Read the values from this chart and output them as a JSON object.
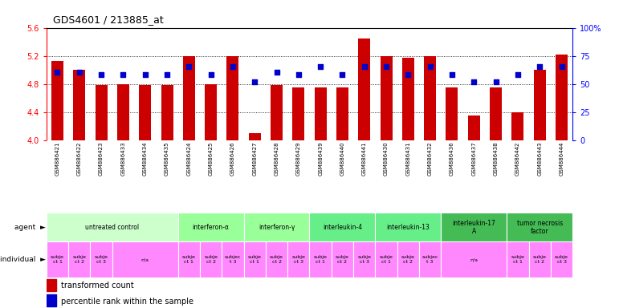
{
  "title": "GDS4601 / 213885_at",
  "gsm_labels": [
    "GSM886421",
    "GSM886422",
    "GSM886423",
    "GSM886433",
    "GSM886434",
    "GSM886435",
    "GSM886424",
    "GSM886425",
    "GSM886426",
    "GSM886427",
    "GSM886428",
    "GSM886429",
    "GSM886439",
    "GSM886440",
    "GSM886441",
    "GSM886430",
    "GSM886431",
    "GSM886432",
    "GSM886436",
    "GSM886437",
    "GSM886438",
    "GSM886442",
    "GSM886443",
    "GSM886444"
  ],
  "bar_values": [
    5.13,
    5.0,
    4.78,
    4.8,
    4.78,
    4.78,
    5.19,
    4.8,
    5.19,
    4.1,
    4.78,
    4.75,
    4.75,
    4.75,
    5.45,
    5.19,
    5.17,
    5.19,
    4.75,
    4.35,
    4.75,
    4.4,
    5.0,
    5.22
  ],
  "dot_values": [
    4.97,
    4.97,
    4.93,
    4.93,
    4.93,
    4.93,
    5.05,
    4.93,
    5.05,
    4.83,
    4.97,
    4.93,
    5.05,
    4.93,
    5.05,
    5.05,
    4.93,
    5.05,
    4.93,
    4.83,
    4.83,
    4.93,
    5.05,
    5.05
  ],
  "ylim_left": [
    4.0,
    5.6
  ],
  "ylim_right": [
    0,
    100
  ],
  "yticks_left": [
    4.0,
    4.4,
    4.8,
    5.2,
    5.6
  ],
  "yticks_right": [
    0,
    25,
    50,
    75,
    100
  ],
  "ytick_labels_right": [
    "0",
    "25",
    "50",
    "75",
    "100%"
  ],
  "bar_color": "#cc0000",
  "dot_color": "#0000cc",
  "agent_groups": [
    {
      "label": "untreated control",
      "start": 0,
      "end": 6,
      "color": "#ccffcc"
    },
    {
      "label": "interferon-α",
      "start": 6,
      "end": 9,
      "color": "#99ff99"
    },
    {
      "label": "interferon-γ",
      "start": 9,
      "end": 12,
      "color": "#99ff99"
    },
    {
      "label": "interleukin-4",
      "start": 12,
      "end": 15,
      "color": "#66ee88"
    },
    {
      "label": "interleukin-13",
      "start": 15,
      "end": 18,
      "color": "#66ee88"
    },
    {
      "label": "interleukin-17\nA",
      "start": 18,
      "end": 21,
      "color": "#44bb55"
    },
    {
      "label": "tumor necrosis\nfactor",
      "start": 21,
      "end": 24,
      "color": "#44bb55"
    }
  ],
  "individual_groups": [
    {
      "label": "subje\nct 1",
      "start": 0,
      "end": 1
    },
    {
      "label": "subje\nct 2",
      "start": 1,
      "end": 2
    },
    {
      "label": "subje\nct 3",
      "start": 2,
      "end": 3
    },
    {
      "label": "n/a",
      "start": 3,
      "end": 6
    },
    {
      "label": "subje\nct 1",
      "start": 6,
      "end": 7
    },
    {
      "label": "subje\nct 2",
      "start": 7,
      "end": 8
    },
    {
      "label": "subjec\nt 3",
      "start": 8,
      "end": 9
    },
    {
      "label": "subje\nct 1",
      "start": 9,
      "end": 10
    },
    {
      "label": "subje\nct 2",
      "start": 10,
      "end": 11
    },
    {
      "label": "subje\nct 3",
      "start": 11,
      "end": 12
    },
    {
      "label": "subje\nct 1",
      "start": 12,
      "end": 13
    },
    {
      "label": "subje\nct 2",
      "start": 13,
      "end": 14
    },
    {
      "label": "subje\nct 3",
      "start": 14,
      "end": 15
    },
    {
      "label": "subje\nct 1",
      "start": 15,
      "end": 16
    },
    {
      "label": "subje\nct 2",
      "start": 16,
      "end": 17
    },
    {
      "label": "subjec\nt 3",
      "start": 17,
      "end": 18
    },
    {
      "label": "n/a",
      "start": 18,
      "end": 21
    },
    {
      "label": "subje\nct 1",
      "start": 21,
      "end": 22
    },
    {
      "label": "subje\nct 2",
      "start": 22,
      "end": 23
    },
    {
      "label": "subje\nct 3",
      "start": 23,
      "end": 24
    }
  ],
  "indiv_color": "#ff88ff",
  "legend_bar_color": "#cc0000",
  "legend_dot_color": "#0000cc",
  "legend_bar_label": "transformed count",
  "legend_dot_label": "percentile rank within the sample"
}
